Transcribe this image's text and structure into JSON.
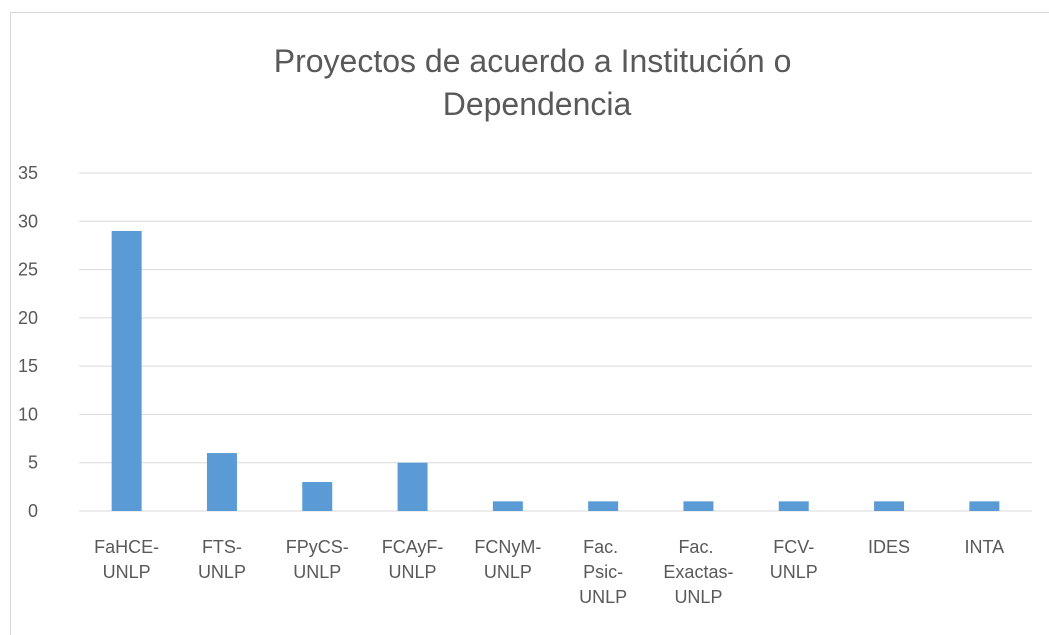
{
  "chart_data": {
    "type": "bar",
    "title": "Proyectos de acuerdo a Institución o Dependencia",
    "categories": [
      "FaHCE-UNLP",
      "FTS-UNLP",
      "FPyCS-UNLP",
      "FCAyF-UNLP",
      "FCNyM-UNLP",
      "Fac. Psic-UNLP",
      "Fac. Exactas-UNLP",
      "FCV-UNLP",
      "IDES",
      "INTA"
    ],
    "values": [
      29,
      6,
      3,
      5,
      1,
      1,
      1,
      1,
      1,
      1
    ],
    "color": "#5b9bd5",
    "ylim": [
      0,
      35
    ],
    "yticks": [
      0,
      5,
      10,
      15,
      20,
      25,
      30,
      35
    ],
    "grid": true
  }
}
